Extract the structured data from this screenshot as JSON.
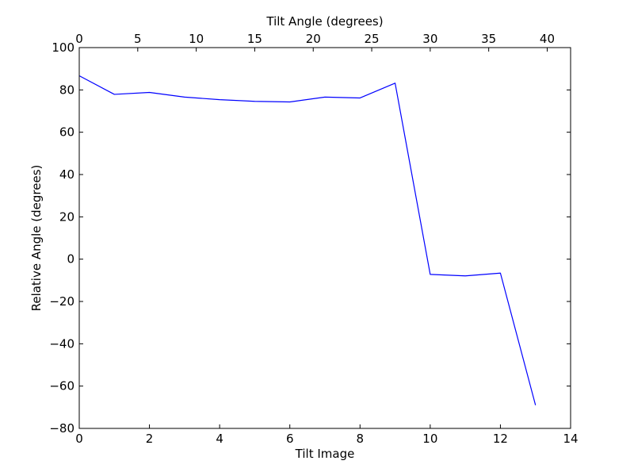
{
  "chart_data": {
    "type": "line",
    "title": "",
    "xlabel": "Tilt Image",
    "ylabel": "Relative Angle (degrees)",
    "x2label": "Tilt Angle (degrees)",
    "xlim": [
      0,
      14
    ],
    "ylim": [
      -80,
      100
    ],
    "x2lim": [
      0,
      42
    ],
    "xticks": [
      0,
      2,
      4,
      6,
      8,
      10,
      12,
      14
    ],
    "yticks": [
      -80,
      -60,
      -40,
      -20,
      0,
      20,
      40,
      60,
      80,
      100
    ],
    "x2ticks": [
      0,
      5,
      10,
      15,
      20,
      25,
      30,
      35,
      40
    ],
    "xtick_labels": [
      "0",
      "2",
      "4",
      "6",
      "8",
      "10",
      "12",
      "14"
    ],
    "ytick_labels": [
      "−80",
      "−60",
      "−40",
      "−20",
      "0",
      "20",
      "40",
      "60",
      "80",
      "100"
    ],
    "x2tick_labels": [
      "0",
      "5",
      "10",
      "15",
      "20",
      "25",
      "30",
      "35",
      "40"
    ],
    "grid": false,
    "legend": "none",
    "line_color": "#0000ff",
    "series": [
      {
        "x": [
          0,
          1,
          2,
          3,
          4,
          5,
          6,
          7,
          8,
          9,
          10,
          11,
          12,
          13
        ],
        "values": [
          86.7,
          77.9,
          78.8,
          76.6,
          75.4,
          74.6,
          74.3,
          76.6,
          76.2,
          83.2,
          -7.2,
          -7.9,
          -6.6,
          -69.0
        ]
      }
    ]
  }
}
